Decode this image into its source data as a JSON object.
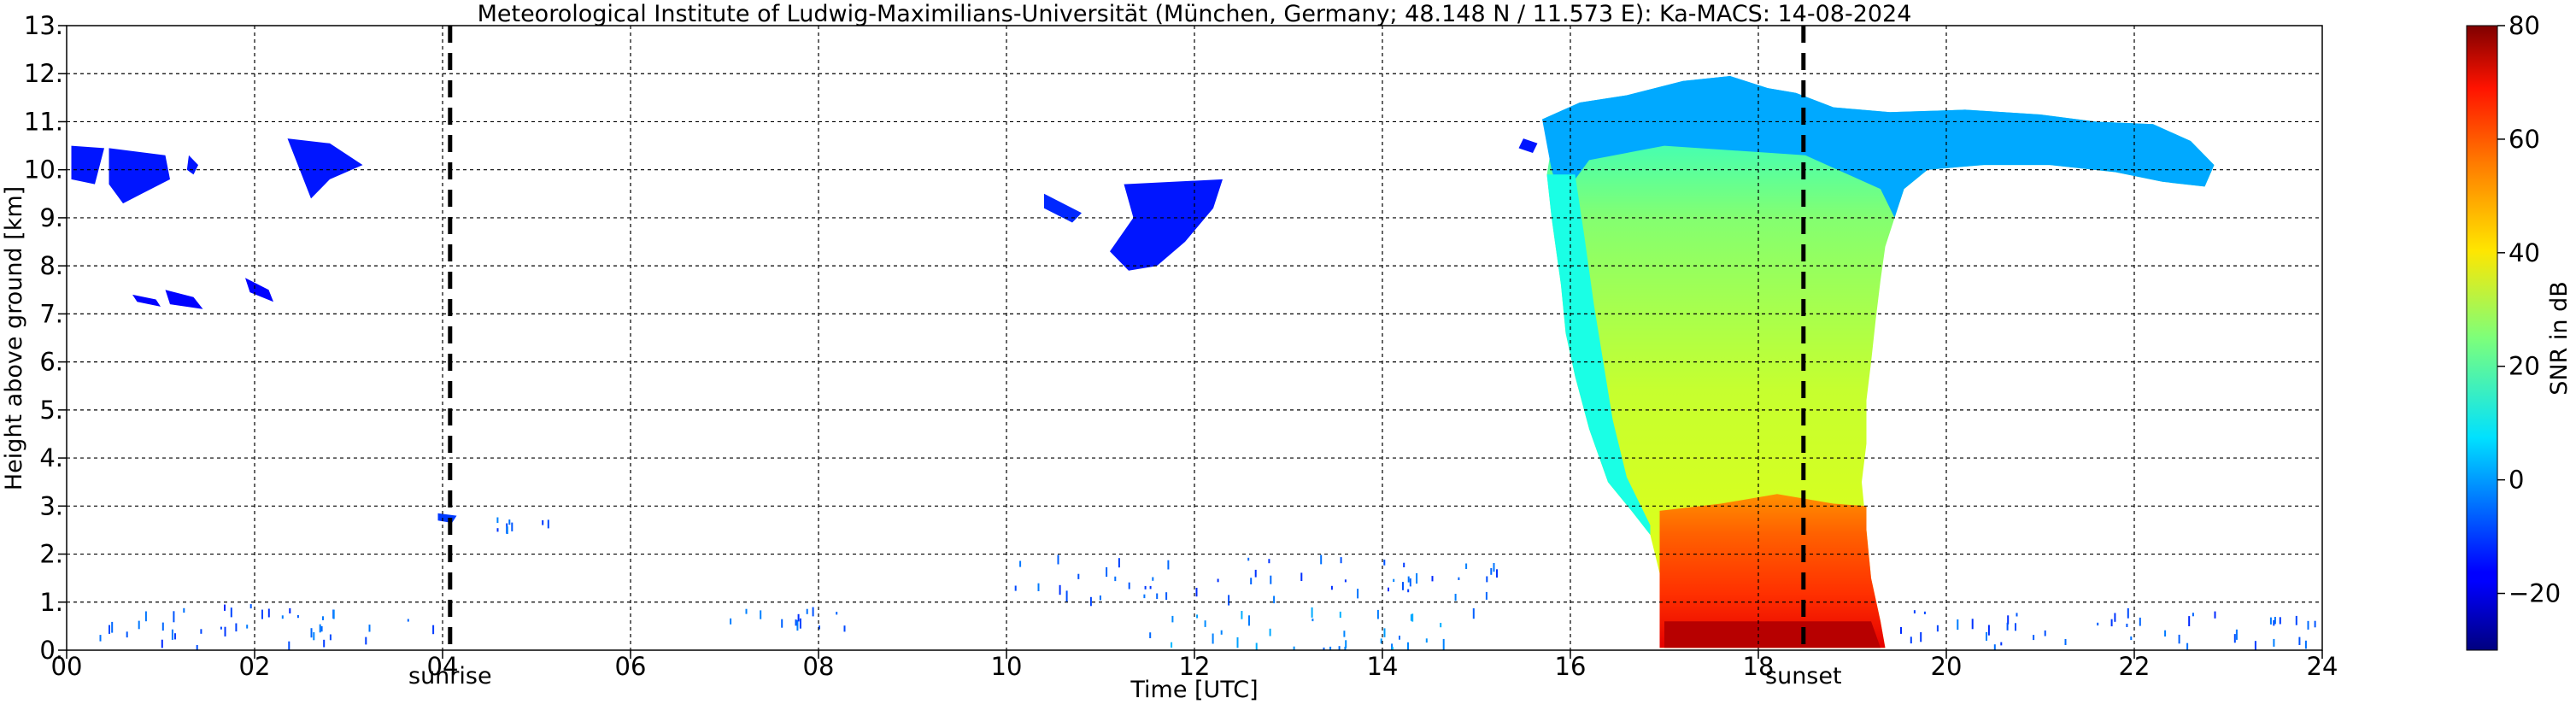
{
  "chart_data": {
    "type": "heatmap",
    "title": "Meteorological Institute of Ludwig-Maximilians-Universität (München, Germany; 48.148 N / 11.573 E):    Ka-MACS: 14-08-2024",
    "xlabel": "Time [UTC]",
    "ylabel": "Height above ground [km]",
    "xlim": [
      0,
      24
    ],
    "ylim": [
      0,
      13
    ],
    "x_tick_values": [
      0,
      2,
      4,
      6,
      8,
      10,
      12,
      14,
      16,
      18,
      20,
      22,
      24
    ],
    "x_tick_labels": [
      "00",
      "02",
      "04",
      "06",
      "08",
      "10",
      "12",
      "14",
      "16",
      "18",
      "20",
      "22",
      "24"
    ],
    "y_tick_values": [
      0,
      1,
      2,
      3,
      4,
      5,
      6,
      7,
      8,
      9,
      10,
      11,
      12,
      13
    ],
    "y_tick_labels": [
      "0.",
      "1.",
      "2.",
      "3.",
      "4.",
      "5.",
      "6.",
      "7.",
      "8.",
      "9.",
      "10.",
      "11.",
      "12.",
      "13."
    ],
    "grid": true,
    "colorbar": {
      "label": "SNR in dB",
      "range": [
        -30,
        80
      ],
      "tick_values": [
        -20,
        0,
        20,
        40,
        60,
        80
      ],
      "tick_labels": [
        "−20",
        "0",
        "20",
        "40",
        "60",
        "80"
      ],
      "colormap": "jet"
    },
    "annotations": [
      {
        "label": "sunrise",
        "x": 4.08
      },
      {
        "label": "sunset",
        "x": 18.48
      }
    ],
    "echo_regions": [
      {
        "name": "deep-convective-cloud",
        "snr_db": 32,
        "outline": [
          [
            16.95,
            0.05
          ],
          [
            16.95,
            1.6
          ],
          [
            16.85,
            2.4
          ],
          [
            16.65,
            2.9
          ],
          [
            16.4,
            3.5
          ],
          [
            16.2,
            4.6
          ],
          [
            16.05,
            5.7
          ],
          [
            15.95,
            6.6
          ],
          [
            15.9,
            7.6
          ],
          [
            15.85,
            8.3
          ],
          [
            15.8,
            9.0
          ],
          [
            15.75,
            9.9
          ],
          [
            15.8,
            10.5
          ],
          [
            15.7,
            11.05
          ],
          [
            16.1,
            11.4
          ],
          [
            16.6,
            11.55
          ],
          [
            17.2,
            11.85
          ],
          [
            17.7,
            11.95
          ],
          [
            18.1,
            11.7
          ],
          [
            18.4,
            11.6
          ],
          [
            18.8,
            11.3
          ],
          [
            19.4,
            11.2
          ],
          [
            20.2,
            11.25
          ],
          [
            21.0,
            11.15
          ],
          [
            21.6,
            11.0
          ],
          [
            22.2,
            10.95
          ],
          [
            22.6,
            10.6
          ],
          [
            22.85,
            10.1
          ],
          [
            22.75,
            9.65
          ],
          [
            22.3,
            9.75
          ],
          [
            21.8,
            9.95
          ],
          [
            21.1,
            10.1
          ],
          [
            20.4,
            10.1
          ],
          [
            19.8,
            10.0
          ],
          [
            19.55,
            9.6
          ],
          [
            19.45,
            9.0
          ],
          [
            19.35,
            8.4
          ],
          [
            19.3,
            7.7
          ],
          [
            19.25,
            6.9
          ],
          [
            19.2,
            6.0
          ],
          [
            19.15,
            5.2
          ],
          [
            19.15,
            4.3
          ],
          [
            19.1,
            3.5
          ],
          [
            19.15,
            2.5
          ],
          [
            19.2,
            1.5
          ],
          [
            19.3,
            0.6
          ],
          [
            19.35,
            0.05
          ]
        ]
      },
      {
        "name": "anvil-outer-edge",
        "snr_db": 2,
        "outline": [
          [
            15.7,
            11.05
          ],
          [
            16.1,
            11.4
          ],
          [
            16.6,
            11.55
          ],
          [
            17.2,
            11.85
          ],
          [
            17.7,
            11.95
          ],
          [
            18.1,
            11.7
          ],
          [
            18.4,
            11.6
          ],
          [
            18.8,
            11.3
          ],
          [
            19.4,
            11.2
          ],
          [
            20.2,
            11.25
          ],
          [
            21.0,
            11.15
          ],
          [
            21.6,
            11.0
          ],
          [
            22.2,
            10.95
          ],
          [
            22.6,
            10.6
          ],
          [
            22.85,
            10.1
          ],
          [
            22.75,
            9.65
          ],
          [
            22.3,
            9.75
          ],
          [
            21.8,
            9.95
          ],
          [
            21.1,
            10.1
          ],
          [
            20.4,
            10.1
          ],
          [
            19.8,
            10.0
          ],
          [
            19.55,
            9.6
          ],
          [
            19.45,
            9.0
          ],
          [
            19.3,
            9.6
          ],
          [
            18.5,
            10.3
          ],
          [
            17.0,
            10.5
          ],
          [
            16.2,
            10.2
          ],
          [
            15.9,
            9.4
          ],
          [
            15.8,
            10.0
          ]
        ]
      },
      {
        "name": "cloud-edge-band",
        "snr_db": 14,
        "outline": [
          [
            16.4,
            3.5
          ],
          [
            16.2,
            4.6
          ],
          [
            16.05,
            5.7
          ],
          [
            15.95,
            6.6
          ],
          [
            15.9,
            7.6
          ],
          [
            15.85,
            8.3
          ],
          [
            15.8,
            9.0
          ],
          [
            15.75,
            9.9
          ],
          [
            16.05,
            9.9
          ],
          [
            16.15,
            8.6
          ],
          [
            16.25,
            7.2
          ],
          [
            16.35,
            6.0
          ],
          [
            16.45,
            4.8
          ],
          [
            16.6,
            3.6
          ],
          [
            16.85,
            2.6
          ],
          [
            16.85,
            2.4
          ],
          [
            16.65,
            2.9
          ]
        ]
      },
      {
        "name": "melting-layer-rain",
        "snr_db": 64,
        "outline": [
          [
            16.95,
            0.05
          ],
          [
            16.95,
            2.9
          ],
          [
            17.6,
            3.05
          ],
          [
            18.2,
            3.25
          ],
          [
            18.8,
            3.05
          ],
          [
            19.15,
            3.0
          ],
          [
            19.15,
            2.5
          ],
          [
            19.2,
            1.5
          ],
          [
            19.3,
            0.6
          ],
          [
            19.35,
            0.05
          ]
        ]
      },
      {
        "name": "surface-rain",
        "snr_db": 74,
        "outline": [
          [
            17.0,
            0.05
          ],
          [
            17.0,
            0.6
          ],
          [
            19.2,
            0.6
          ],
          [
            19.3,
            0.05
          ]
        ]
      },
      {
        "name": "cirrus-0030",
        "snr_db": -14,
        "outline": [
          [
            0.05,
            10.5
          ],
          [
            0.4,
            10.45
          ],
          [
            0.3,
            9.7
          ],
          [
            0.05,
            9.8
          ]
        ]
      },
      {
        "name": "cirrus-0100",
        "snr_db": -14,
        "outline": [
          [
            0.45,
            10.45
          ],
          [
            1.05,
            10.3
          ],
          [
            1.1,
            9.8
          ],
          [
            0.8,
            9.5
          ],
          [
            0.6,
            9.3
          ],
          [
            0.45,
            9.7
          ]
        ]
      },
      {
        "name": "cirrus-0115",
        "snr_db": -14,
        "outline": [
          [
            1.3,
            10.3
          ],
          [
            1.4,
            10.1
          ],
          [
            1.35,
            9.9
          ],
          [
            1.28,
            10.0
          ]
        ]
      },
      {
        "name": "cirrus-0245",
        "snr_db": -14,
        "outline": [
          [
            2.35,
            10.65
          ],
          [
            2.8,
            10.55
          ],
          [
            3.15,
            10.1
          ],
          [
            2.8,
            9.8
          ],
          [
            2.6,
            9.4
          ],
          [
            2.5,
            9.9
          ]
        ]
      },
      {
        "name": "cloud-7km-a",
        "snr_db": -16,
        "outline": [
          [
            0.7,
            7.4
          ],
          [
            0.95,
            7.3
          ],
          [
            1.0,
            7.15
          ],
          [
            0.75,
            7.25
          ]
        ]
      },
      {
        "name": "cloud-7km-b",
        "snr_db": -16,
        "outline": [
          [
            1.05,
            7.5
          ],
          [
            1.35,
            7.35
          ],
          [
            1.45,
            7.1
          ],
          [
            1.1,
            7.2
          ]
        ]
      },
      {
        "name": "cloud-7km-c",
        "snr_db": -16,
        "outline": [
          [
            1.9,
            7.75
          ],
          [
            2.15,
            7.5
          ],
          [
            2.2,
            7.25
          ],
          [
            1.95,
            7.45
          ]
        ]
      },
      {
        "name": "cirrus-1045",
        "snr_db": -12,
        "outline": [
          [
            10.4,
            9.5
          ],
          [
            10.8,
            9.1
          ],
          [
            10.7,
            8.9
          ],
          [
            10.4,
            9.2
          ]
        ]
      },
      {
        "name": "cirrus-1130",
        "snr_db": -14,
        "outline": [
          [
            11.25,
            9.7
          ],
          [
            12.3,
            9.8
          ],
          [
            12.2,
            9.2
          ],
          [
            11.9,
            8.5
          ],
          [
            11.6,
            8.0
          ],
          [
            11.3,
            7.9
          ],
          [
            11.1,
            8.3
          ],
          [
            11.35,
            9.0
          ]
        ]
      },
      {
        "name": "cirrus-1545",
        "snr_db": -14,
        "outline": [
          [
            15.5,
            10.65
          ],
          [
            15.65,
            10.55
          ],
          [
            15.6,
            10.35
          ],
          [
            15.45,
            10.45
          ]
        ]
      },
      {
        "name": "cloud-0410",
        "snr_db": -10,
        "outline": [
          [
            3.95,
            2.85
          ],
          [
            4.15,
            2.8
          ],
          [
            4.1,
            2.65
          ],
          [
            3.95,
            2.7
          ]
        ]
      }
    ],
    "speckle_clusters": [
      {
        "x": [
          0,
          4
        ],
        "y": [
          0.1,
          1.0
        ],
        "snr_db": -12
      },
      {
        "x": [
          4.5,
          5.3
        ],
        "y": [
          2.5,
          2.8
        ],
        "snr_db": -12
      },
      {
        "x": [
          7,
          8.3
        ],
        "y": [
          0.5,
          0.9
        ],
        "snr_db": -12
      },
      {
        "x": [
          10,
          15.3
        ],
        "y": [
          1.1,
          2.0
        ],
        "snr_db": -12
      },
      {
        "x": [
          11.5,
          15
        ],
        "y": [
          0.05,
          0.9
        ],
        "snr_db": -6
      },
      {
        "x": [
          19.5,
          24
        ],
        "y": [
          0.1,
          0.9
        ],
        "snr_db": -12
      }
    ]
  }
}
